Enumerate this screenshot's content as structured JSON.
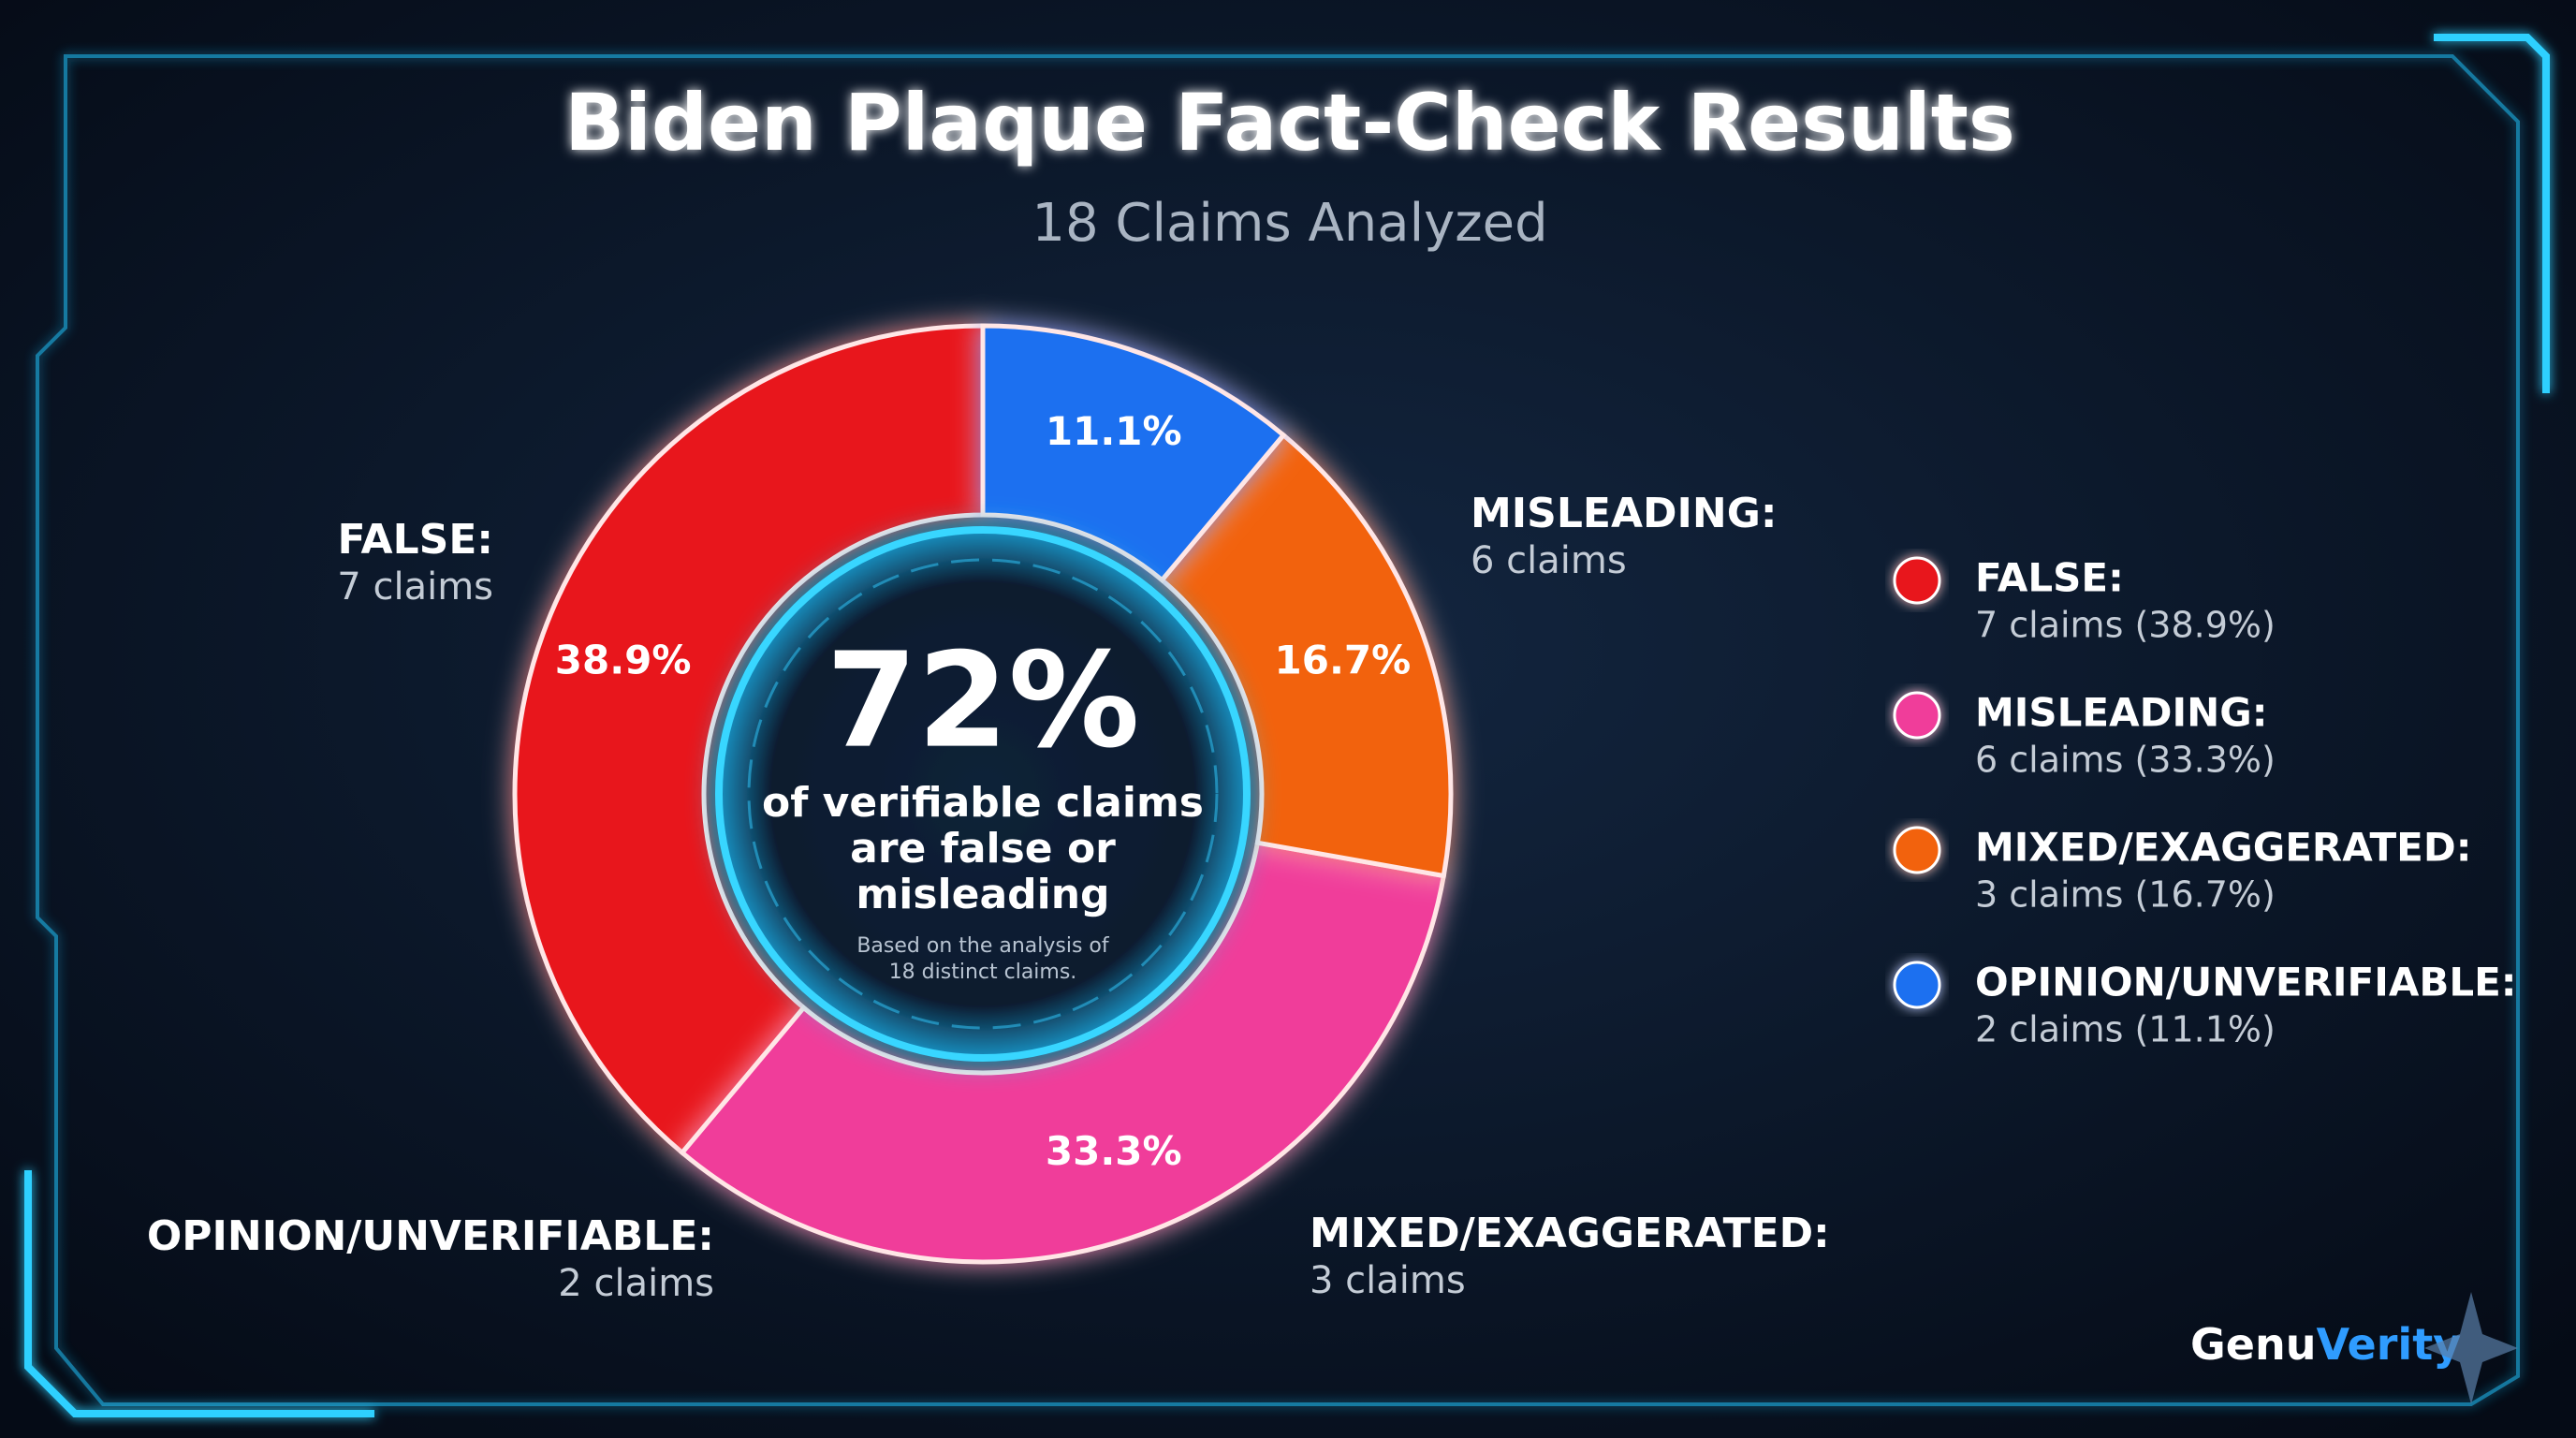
{
  "chart_data": {
    "type": "donut",
    "title": "Biden Plaque Fact-Check Results",
    "subtitle": "18 Claims Analyzed",
    "categories": [
      "FALSE:",
      "MISLEADING:",
      "MIXED/EXAGGERATED:",
      "OPINION/UNVERIFIABLE:"
    ],
    "values": [
      38.9,
      33.3,
      16.7,
      11.1
    ],
    "value_labels": [
      "38.9%",
      "33.3%",
      "16.7%",
      "11.1%"
    ],
    "colors": [
      "#e8141e",
      "#f03c9a",
      "#f2620f",
      "#1a6ff0"
    ],
    "direction": "counterclockwise",
    "annotations": [
      "7 claims",
      "6 claims",
      "3 claims",
      "2 claims"
    ],
    "legend": true,
    "legend_position": "right",
    "legend_details": [
      "7 claims (38.9%)",
      "6 claims (33.3%)",
      "3 claims (16.7%)",
      "2 claims (11.1%)"
    ],
    "center": {
      "headline": "72%",
      "lines": [
        "of verifiable claims",
        "are false or",
        "misleading"
      ],
      "note_lines": [
        "Based on the analysis of",
        "18 distinct claims."
      ]
    }
  },
  "brand": {
    "part1": "Genu",
    "part2": "Verity"
  }
}
